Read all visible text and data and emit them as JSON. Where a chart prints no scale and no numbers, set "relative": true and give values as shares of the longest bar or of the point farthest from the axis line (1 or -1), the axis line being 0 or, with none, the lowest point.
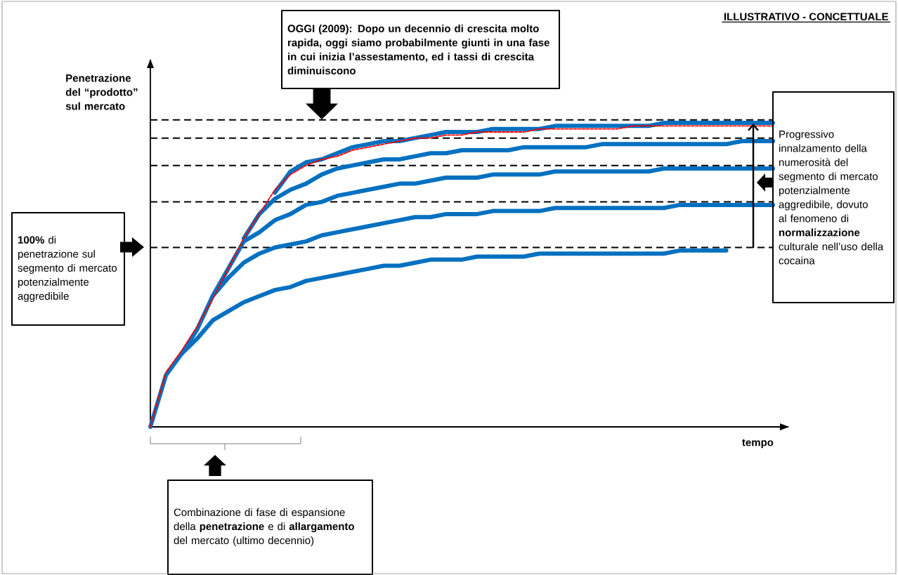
{
  "chart_data": {
    "type": "line",
    "relative": true,
    "xlabel": "tempo",
    "ylabel": "Penetrazione del “prodotto” sul mercato",
    "categories": [
      null,
      null,
      null,
      null,
      null,
      null,
      null,
      null,
      null,
      null,
      null,
      null,
      null,
      null,
      null,
      null,
      null,
      null,
      null,
      null,
      null,
      null,
      null,
      null,
      null,
      null,
      null,
      null,
      null,
      null,
      null,
      null,
      null,
      null,
      null,
      null,
      null,
      null,
      null,
      null,
      null
    ],
    "series": [
      {
        "color": "#0070c0",
        "line_style": "solid",
        "values": [
          0,
          0.17,
          0.24,
          0.29,
          0.35,
          0.38,
          0.41,
          0.43,
          0.45,
          0.46,
          0.48,
          0.49,
          0.5,
          0.51,
          0.52,
          0.53,
          0.53,
          0.54,
          0.55,
          0.55,
          0.55,
          0.56,
          0.56,
          0.56,
          0.56,
          0.57,
          0.57,
          0.57,
          0.57,
          0.57,
          0.57,
          0.57,
          0.57,
          0.57,
          0.58,
          0.58,
          0.58,
          0.58,
          null,
          null,
          null
        ]
      },
      {
        "color": "#0070c0",
        "line_style": "solid",
        "values": [
          null,
          null,
          0.24,
          0.32,
          0.43,
          0.49,
          0.54,
          0.57,
          0.59,
          0.6,
          0.61,
          0.63,
          0.64,
          0.65,
          0.66,
          0.67,
          0.68,
          0.69,
          0.69,
          0.7,
          0.7,
          0.7,
          0.71,
          0.71,
          0.71,
          0.71,
          0.72,
          0.72,
          0.72,
          0.72,
          0.72,
          0.72,
          0.72,
          0.72,
          0.73,
          0.73,
          0.73,
          0.73,
          0.73,
          0.73,
          0.73
        ]
      },
      {
        "color": "#0070c0",
        "line_style": "solid",
        "values": [
          null,
          null,
          null,
          null,
          0.43,
          0.52,
          0.61,
          0.64,
          0.68,
          0.7,
          0.73,
          0.74,
          0.76,
          0.77,
          0.78,
          0.79,
          0.8,
          0.8,
          0.81,
          0.82,
          0.82,
          0.82,
          0.83,
          0.83,
          0.83,
          0.83,
          0.84,
          0.84,
          0.84,
          0.84,
          0.84,
          0.84,
          0.84,
          0.85,
          0.85,
          0.85,
          0.85,
          0.85,
          0.85,
          0.85,
          0.85
        ]
      },
      {
        "color": "#0070c0",
        "line_style": "solid",
        "values": [
          null,
          null,
          null,
          null,
          null,
          null,
          0.62,
          0.7,
          0.75,
          0.78,
          0.8,
          0.83,
          0.85,
          0.86,
          0.87,
          0.88,
          0.88,
          0.89,
          0.9,
          0.9,
          0.91,
          0.91,
          0.91,
          0.91,
          0.92,
          0.92,
          0.92,
          0.92,
          0.92,
          0.93,
          0.93,
          0.93,
          0.93,
          0.93,
          0.93,
          0.93,
          0.93,
          0.93,
          0.94,
          0.94,
          0.94
        ]
      },
      {
        "color": "#0070c0",
        "line_style": "solid",
        "values": [
          null,
          null,
          null,
          null,
          null,
          null,
          null,
          null,
          0.77,
          0.84,
          0.87,
          0.88,
          0.9,
          0.92,
          0.93,
          0.94,
          0.94,
          0.95,
          0.96,
          0.97,
          0.97,
          0.97,
          0.98,
          0.98,
          0.98,
          0.98,
          0.99,
          0.99,
          0.99,
          0.99,
          0.99,
          0.99,
          0.99,
          1.0,
          1.0,
          1.0,
          1.0,
          1.0,
          1.0,
          1.0,
          1.0
        ]
      },
      {
        "color": "#ff0000",
        "line_style": "dashed",
        "values": [
          0,
          0.18,
          0.25,
          0.33,
          0.42,
          0.52,
          0.62,
          0.7,
          0.78,
          0.83,
          0.86,
          0.88,
          0.89,
          0.91,
          0.92,
          0.93,
          0.94,
          0.95,
          0.95,
          0.96,
          0.96,
          0.97,
          0.97,
          0.97,
          0.97,
          0.98,
          0.98,
          0.98,
          0.98,
          0.98,
          0.98,
          0.99,
          0.99,
          0.99,
          0.99,
          0.99,
          0.99,
          0.99,
          0.99,
          0.99,
          0.99
        ]
      }
    ],
    "ref_lines": [
      {
        "axis": "y",
        "value": 1.01,
        "color": "#000000",
        "line_style": "dashed"
      },
      {
        "axis": "y",
        "value": 0.95,
        "color": "#000000",
        "line_style": "dashed"
      },
      {
        "axis": "y",
        "value": 0.86,
        "color": "#000000",
        "line_style": "dashed"
      },
      {
        "axis": "y",
        "value": 0.74,
        "color": "#000000",
        "line_style": "dashed"
      },
      {
        "axis": "y",
        "value": 0.59,
        "color": "#000000",
        "line_style": "dashed"
      }
    ],
    "annotations": [
      "ILLUSTRATIVO - CONCETTUALE",
      "OGGI (2009): Dopo un decennio di crescita molto rapida, oggi siamo probabilmente giunti in una fase in cui inizia l’assestamento, ed i tassi di crescita diminuiscono",
      "**100%** di penetrazione sul segmento di mercato potenzialmente aggredibile",
      "Progressivo innalzamento della numerosità del segmento di mercato potenzialmente aggredibile, dovuto al fenomeno di **normalizzazione** culturale nell’uso della cocaina",
      "Combinazione di fase di espansione della **penetrazione** e di **allargamento** del mercato (ultimo decennio)"
    ]
  }
}
